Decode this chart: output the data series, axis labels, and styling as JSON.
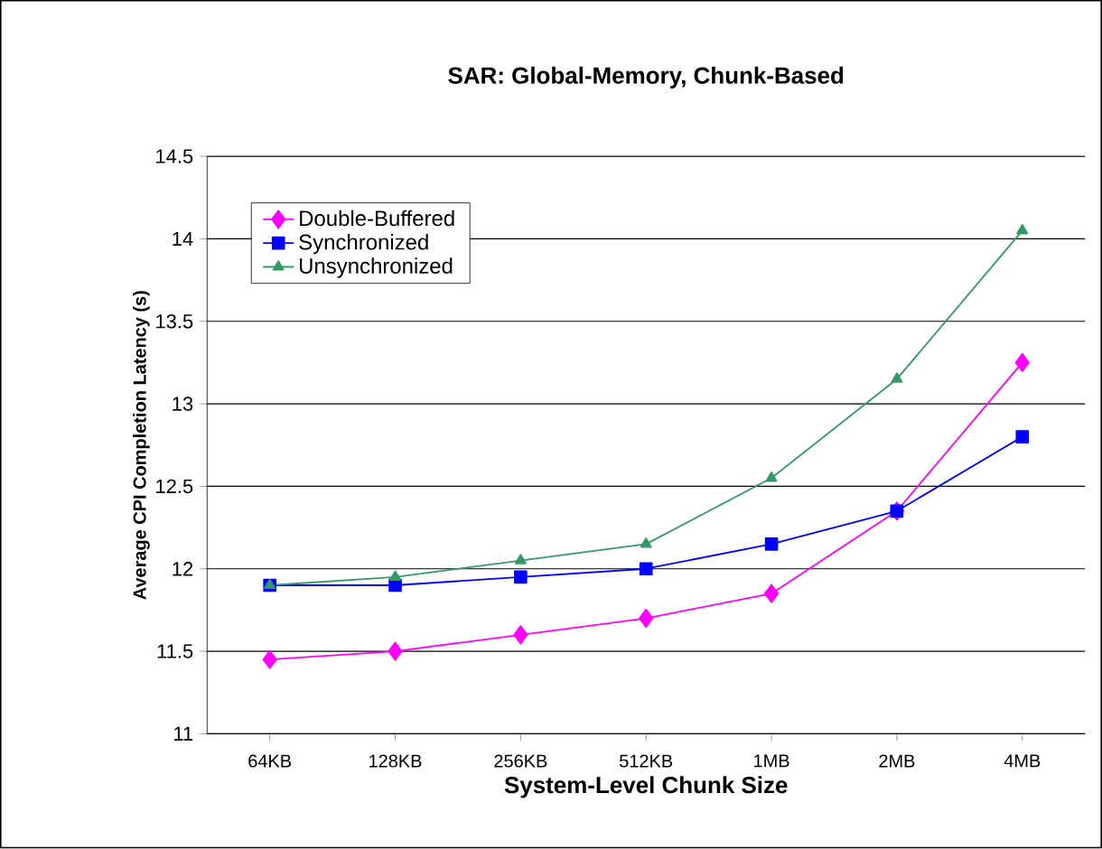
{
  "chart_data": {
    "type": "line",
    "title": "SAR: Global-Memory, Chunk-Based",
    "xlabel": "System-Level Chunk Size",
    "ylabel": "Average CPI Completion Latency (s)",
    "categories": [
      "64KB",
      "128KB",
      "256KB",
      "512KB",
      "1MB",
      "2MB",
      "4MB"
    ],
    "series": [
      {
        "name": "Double-Buffered",
        "color": "#ff00ff",
        "marker": "diamond",
        "values": [
          11.45,
          11.5,
          11.6,
          11.7,
          11.85,
          12.35,
          13.25
        ]
      },
      {
        "name": "Synchronized",
        "color": "#0000ff",
        "marker": "square",
        "values": [
          11.9,
          11.9,
          11.95,
          12.0,
          12.15,
          12.35,
          12.8
        ]
      },
      {
        "name": "Unsynchronized",
        "color": "#339966",
        "marker": "triangle",
        "values": [
          11.9,
          11.95,
          12.05,
          12.15,
          12.55,
          13.15,
          14.05
        ]
      }
    ],
    "ylim": [
      11,
      14.5
    ],
    "yticks": [
      11,
      11.5,
      12,
      12.5,
      13,
      13.5,
      14,
      14.5
    ],
    "grid": "y",
    "legend": "top left",
    "line_style": "solid"
  }
}
